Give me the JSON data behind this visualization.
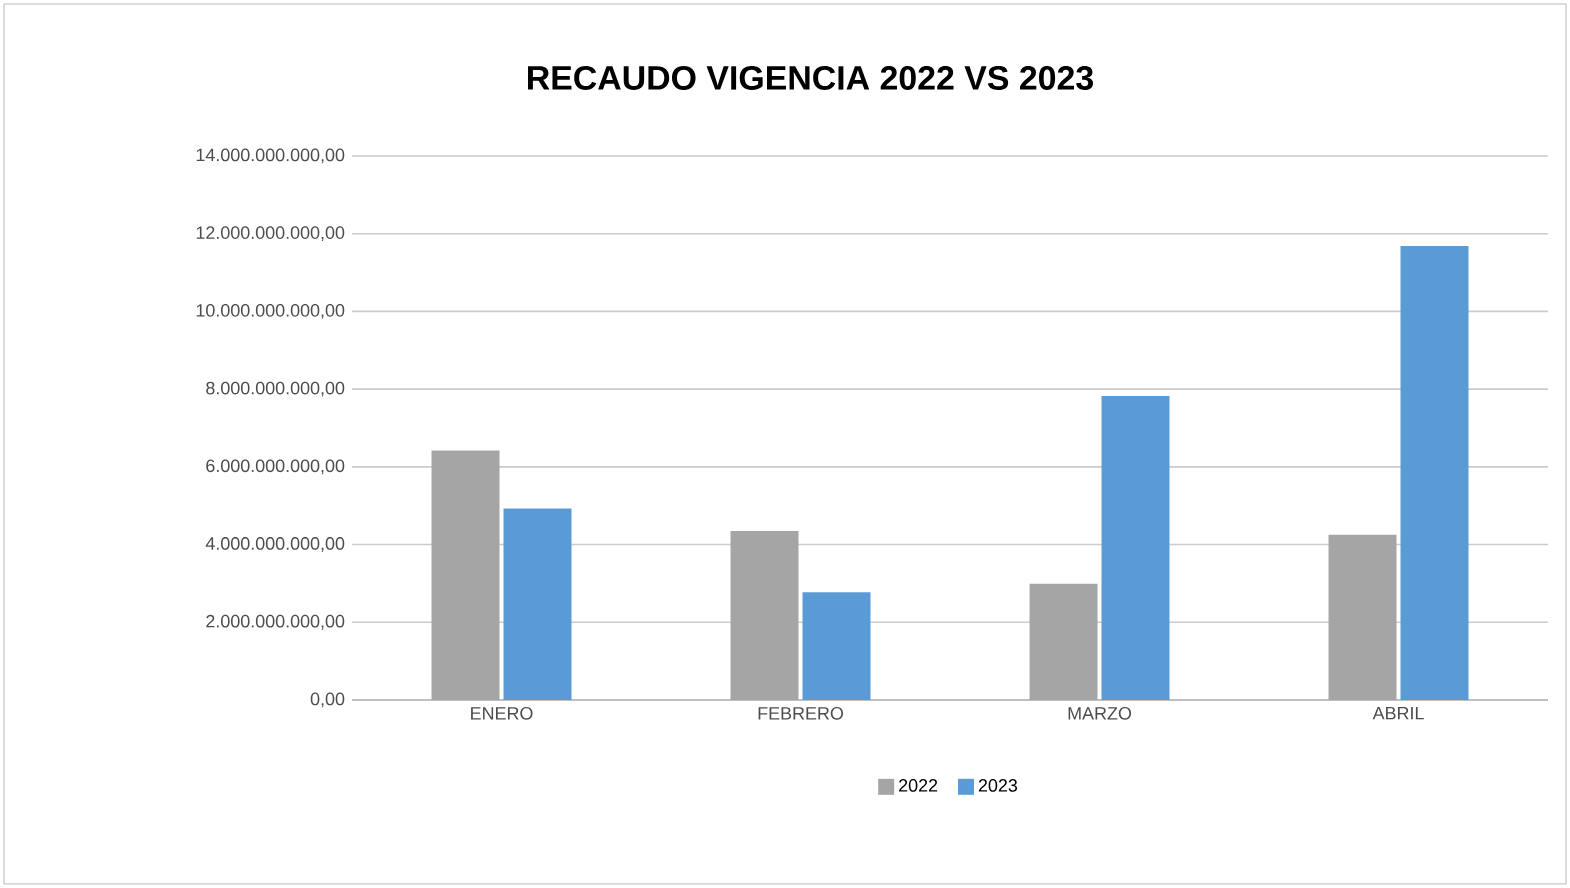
{
  "chart_data": {
    "type": "bar",
    "title": "RECAUDO  VIGENCIA 2022 VS 2023",
    "categories": [
      "ENERO",
      "FEBRERO",
      "MARZO",
      "ABRIL"
    ],
    "series": [
      {
        "name": "2022",
        "color": "#a5a5a5",
        "values": [
          6420000000,
          4350000000,
          2990000000,
          4250000000
        ]
      },
      {
        "name": "2023",
        "color": "#5b9bd5",
        "values": [
          4930000000,
          2770000000,
          7820000000,
          11680000000
        ]
      }
    ],
    "ylim": [
      0,
      14000000000
    ],
    "yticks": [
      {
        "value": 0,
        "label": "0,00"
      },
      {
        "value": 2000000000,
        "label": "2.000.000.000,00"
      },
      {
        "value": 4000000000,
        "label": "4.000.000.000,00"
      },
      {
        "value": 6000000000,
        "label": "6.000.000.000,00"
      },
      {
        "value": 8000000000,
        "label": "8.000.000.000,00"
      },
      {
        "value": 10000000000,
        "label": "10.000.000.000,00"
      },
      {
        "value": 12000000000,
        "label": "12.000.000.000,00"
      },
      {
        "value": 14000000000,
        "label": "14.000.000.000,00"
      }
    ],
    "grid": "y",
    "legend": "bottom"
  }
}
